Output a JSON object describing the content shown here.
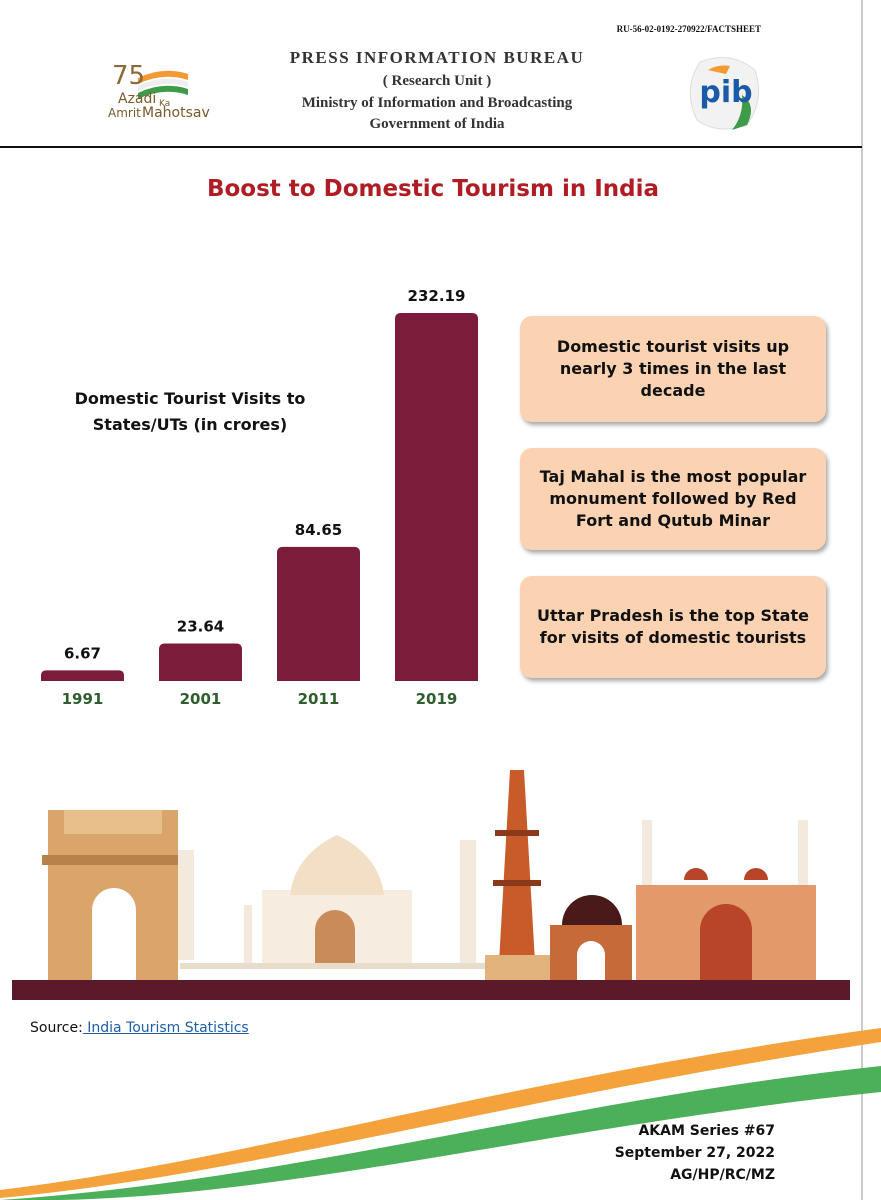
{
  "header": {
    "ref": "RU-56-02-0192-270922/FACTSHEET",
    "org": "PRESS INFORMATION BUREAU",
    "unit": "( Research Unit )",
    "ministry": "Ministry of Information and Broadcasting",
    "government": "Government of India",
    "logo_left": {
      "number": "75",
      "azadi": "Azadi",
      "ka": "Ka",
      "amrit": "Amrit",
      "mahotsav": "Mahotsav"
    },
    "logo_right": "pib"
  },
  "chart_data": {
    "type": "bar",
    "title": "Boost to Domestic Tourism in India",
    "ylabel": "Domestic Tourist Visits to States/UTs (in crores)",
    "categories": [
      "1991",
      "2001",
      "2011",
      "2019"
    ],
    "values": [
      6.67,
      23.64,
      84.65,
      232.19
    ],
    "color": "#7b1c3a"
  },
  "highlights": [
    "Domestic tourist visits up nearly 3 times in the last decade",
    "Taj Mahal is the most popular monument followed by Red Fort and Qutub Minar",
    "Uttar Pradesh is the top State for visits of domestic tourists"
  ],
  "source": {
    "label": "Source:",
    "link": " India Tourism Statistics"
  },
  "footer": [
    "AKAM Series #67",
    "September 27, 2022",
    "AG/HP/RC/MZ"
  ]
}
